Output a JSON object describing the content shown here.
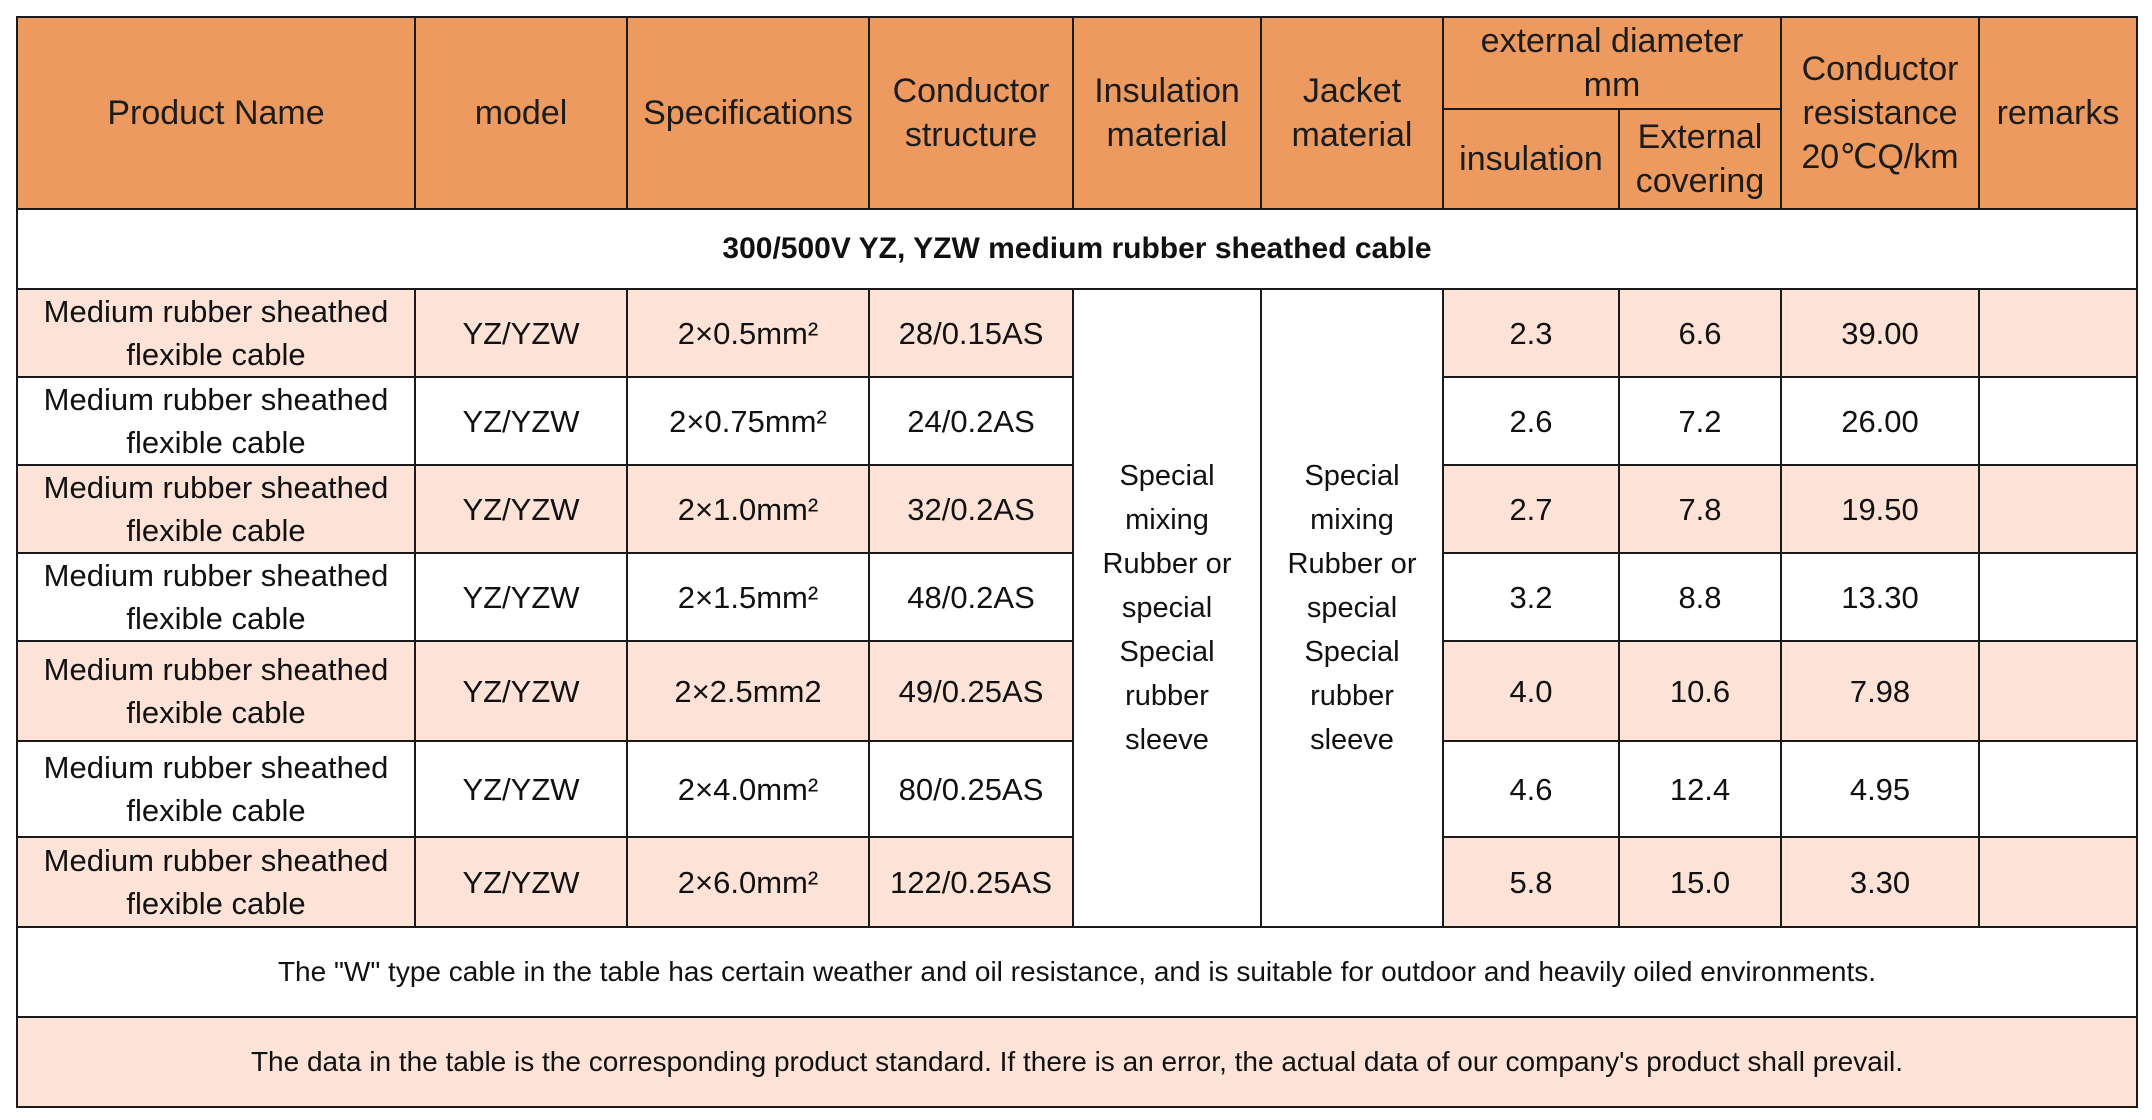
{
  "header": {
    "product_name": "Product Name",
    "model": "model",
    "specifications": "Specifications",
    "conductor_structure_1": "Conductor",
    "conductor_structure_2": "structure",
    "insulation_material_1": "Insulation",
    "insulation_material_2": "material",
    "jacket_material_1": "Jacket",
    "jacket_material_2": "material",
    "external_diameter_1": "external diameter",
    "external_diameter_2": "mm",
    "insulation": "insulation",
    "external_covering_1": "External",
    "external_covering_2": "covering",
    "conductor_resistance_1": "Conductor",
    "conductor_resistance_2": "resistance",
    "conductor_resistance_3": "20℃Q/km",
    "remarks": "remarks"
  },
  "section_title": "300/500V YZ, YZW medium rubber sheathed cable",
  "insulation_material_value": {
    "line1": "Special mixing",
    "line2": "Rubber or",
    "line3": "special",
    "line4": "Special rubber",
    "line5": "sleeve"
  },
  "jacket_material_value": {
    "line1": "Special",
    "line2": "mixing",
    "line3": "Rubber or",
    "line4": "special",
    "line5": "Special",
    "line6": "rubber sleeve"
  },
  "rows": [
    {
      "name1": "Medium rubber sheathed",
      "name2": "flexible cable",
      "model": "YZ/YZW",
      "spec": "2×0.5mm²",
      "conductor": "28/0.15AS",
      "insulation": "2.3",
      "covering": "6.6",
      "resistance": "39.00",
      "remarks": ""
    },
    {
      "name1": "Medium rubber sheathed",
      "name2": "flexible cable",
      "model": "YZ/YZW",
      "spec": "2×0.75mm²",
      "conductor": "24/0.2AS",
      "insulation": "2.6",
      "covering": "7.2",
      "resistance": "26.00",
      "remarks": ""
    },
    {
      "name1": "Medium rubber sheathed",
      "name2": "flexible cable",
      "model": "YZ/YZW",
      "spec": "2×1.0mm²",
      "conductor": "32/0.2AS",
      "insulation": "2.7",
      "covering": "7.8",
      "resistance": "19.50",
      "remarks": ""
    },
    {
      "name1": "Medium rubber sheathed",
      "name2": "flexible cable",
      "model": "YZ/YZW",
      "spec": "2×1.5mm²",
      "conductor": "48/0.2AS",
      "insulation": "3.2",
      "covering": "8.8",
      "resistance": "13.30",
      "remarks": ""
    },
    {
      "name1": "Medium rubber sheathed",
      "name2": "flexible cable",
      "model": "YZ/YZW",
      "spec": "2×2.5mm2",
      "conductor": "49/0.25AS",
      "insulation": "4.0",
      "covering": "10.6",
      "resistance": "7.98",
      "remarks": ""
    },
    {
      "name1": "Medium rubber sheathed",
      "name2": "flexible cable",
      "model": "YZ/YZW",
      "spec": "2×4.0mm²",
      "conductor": "80/0.25AS",
      "insulation": "4.6",
      "covering": "12.4",
      "resistance": "4.95",
      "remarks": ""
    },
    {
      "name1": "Medium rubber sheathed",
      "name2": "flexible cable",
      "model": "YZ/YZW",
      "spec": "2×6.0mm²",
      "conductor": "122/0.25AS",
      "insulation": "5.8",
      "covering": "15.0",
      "resistance": "3.30",
      "remarks": ""
    }
  ],
  "notes": {
    "note1": "The \"W\" type cable in the table has certain weather and oil resistance, and is suitable for outdoor and heavily oiled environments.",
    "note2": "The data in the table is the corresponding product standard. If there is an error, the actual data of our company's product shall prevail."
  },
  "colors": {
    "header_bg": "#ec9a60",
    "shade_bg": "#fde3d7",
    "border": "#1a1a1a"
  }
}
